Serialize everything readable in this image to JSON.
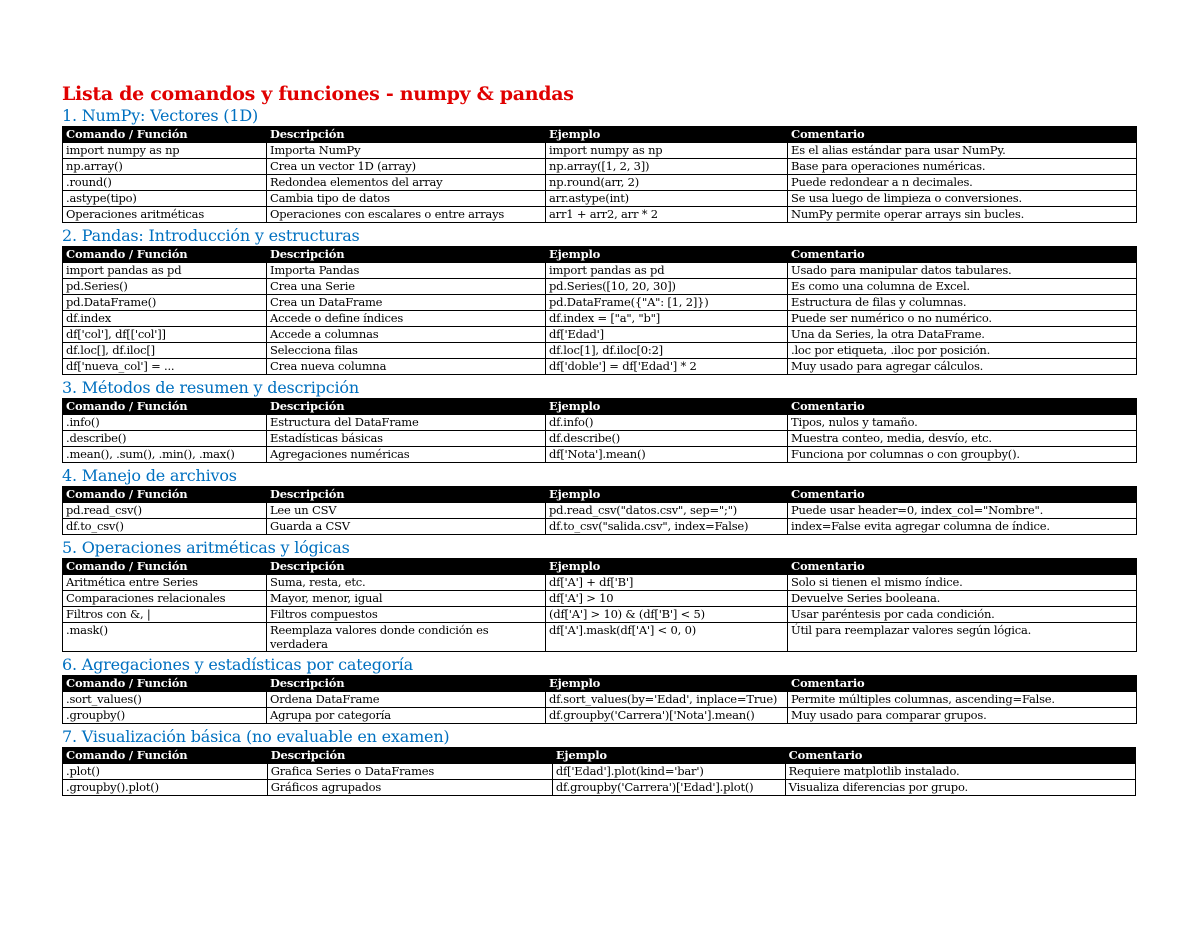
{
  "title": "Lista de comandos y funciones - numpy & pandas",
  "columns": [
    "Comando / Función",
    "Descripción",
    "Ejemplo",
    "Comentario"
  ],
  "sections": [
    {
      "heading": "1. NumPy: Vectores (1D)",
      "rows": [
        [
          "import numpy as np",
          "Importa NumPy",
          "import numpy as np",
          "Es el alias estándar para usar NumPy."
        ],
        [
          "np.array()",
          "Crea un vector 1D (array)",
          "np.array([1, 2, 3])",
          "Base para operaciones numéricas."
        ],
        [
          ".round()",
          "Redondea elementos del array",
          "np.round(arr, 2)",
          "Puede redondear a n decimales."
        ],
        [
          ".astype(tipo)",
          "Cambia tipo de datos",
          "arr.astype(int)",
          "Se usa luego de limpieza o conversiones."
        ],
        [
          "Operaciones aritméticas",
          "Operaciones con escalares o entre arrays",
          "arr1 + arr2, arr * 2",
          "NumPy permite operar arrays sin bucles."
        ]
      ]
    },
    {
      "heading": "2. Pandas: Introducción y estructuras",
      "rows": [
        [
          "import pandas as pd",
          "Importa Pandas",
          "import pandas as pd",
          "Usado para manipular datos tabulares."
        ],
        [
          "pd.Series()",
          "Crea una Serie",
          "pd.Series([10, 20, 30])",
          "Es como una columna de Excel."
        ],
        [
          "pd.DataFrame()",
          "Crea un DataFrame",
          "pd.DataFrame({\"A\": [1, 2]})",
          "Estructura de filas y columnas."
        ],
        [
          "df.index",
          "Accede o define índices",
          "df.index = [\"a\", \"b\"]",
          "Puede ser numérico o no numérico."
        ],
        [
          "df['col'], df[['col']]",
          "Accede a columnas",
          "df['Edad']",
          "Una da Series, la otra DataFrame."
        ],
        [
          "df.loc[], df.iloc[]",
          "Selecciona filas",
          "df.loc[1], df.iloc[0:2]",
          ".loc por etiqueta, .iloc por posición."
        ],
        [
          "df['nueva_col'] = ...",
          "Crea nueva columna",
          "df['doble'] = df['Edad'] * 2",
          "Muy usado para agregar cálculos."
        ]
      ]
    },
    {
      "heading": "3. Métodos de resumen y descripción",
      "rows": [
        [
          ".info()",
          "Estructura del DataFrame",
          "df.info()",
          "Tipos, nulos y tamaño."
        ],
        [
          ".describe()",
          "Estadísticas básicas",
          "df.describe()",
          "Muestra conteo, media, desvío, etc."
        ],
        [
          ".mean(), .sum(), .min(), .max()",
          "Agregaciones numéricas",
          "df['Nota'].mean()",
          "Funciona por columnas o con groupby()."
        ]
      ]
    },
    {
      "heading": "4. Manejo de archivos",
      "rows": [
        [
          "pd.read_csv()",
          "Lee un CSV",
          "pd.read_csv(\"datos.csv\", sep=\";\")",
          "Puede usar header=0, index_col=\"Nombre\"."
        ],
        [
          "df.to_csv()",
          "Guarda a CSV",
          "df.to_csv(\"salida.csv\", index=False)",
          "index=False evita agregar columna de índice."
        ]
      ]
    },
    {
      "heading": "5. Operaciones aritméticas y lógicas",
      "rows": [
        [
          "Aritmética entre Series",
          "Suma, resta, etc.",
          "df['A'] + df['B']",
          "Solo si tienen el mismo índice."
        ],
        [
          "Comparaciones relacionales",
          "Mayor, menor, igual",
          "df['A'] > 10",
          "Devuelve Series booleana."
        ],
        [
          "Filtros con &, |",
          "Filtros compuestos",
          "(df['A'] > 10) & (df['B'] < 5)",
          "Usar paréntesis por cada condición."
        ],
        [
          ".mask()",
          "Reemplaza valores donde condición es verdadera",
          "df['A'].mask(df['A'] < 0, 0)",
          "Útil para reemplazar valores según lógica."
        ]
      ]
    },
    {
      "heading": "6. Agregaciones y estadísticas por categoría",
      "rows": [
        [
          ".sort_values()",
          "Ordena DataFrame",
          "df.sort_values(by='Edad', inplace=True)",
          "Permite múltiples columnas, ascending=False."
        ],
        [
          ".groupby()",
          "Agrupa por categoría",
          "df.groupby('Carrera')['Nota'].mean()",
          "Muy usado para comparar grupos."
        ]
      ]
    },
    {
      "heading": "7. Visualización básica (no evaluable en examen)",
      "rows": [
        [
          ".plot()",
          "Grafica Series o DataFrames",
          "df['Edad'].plot(kind='bar')",
          "Requiere matplotlib instalado."
        ],
        [
          ".groupby().plot()",
          "Gráficos agrupados",
          "df.groupby('Carrera')['Edad'].plot()",
          "Visualiza diferencias por grupo."
        ]
      ]
    }
  ]
}
